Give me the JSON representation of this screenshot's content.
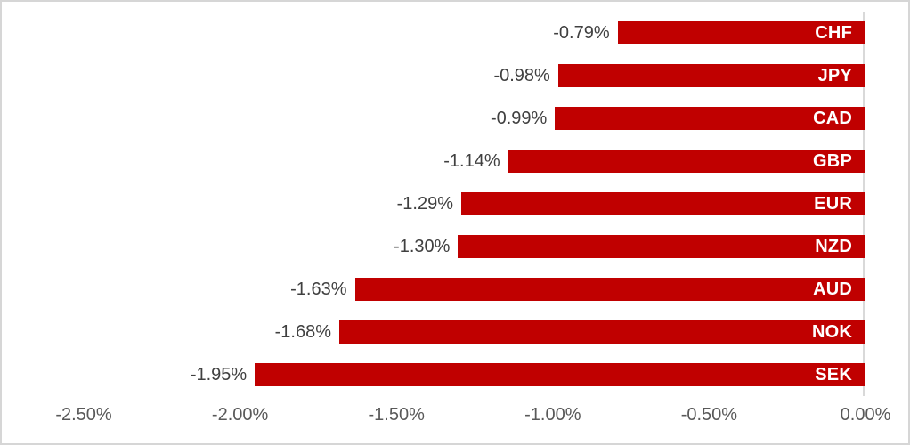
{
  "chart_data": {
    "type": "bar",
    "orientation": "horizontal",
    "title": "",
    "categories": [
      "CHF",
      "JPY",
      "CAD",
      "GBP",
      "EUR",
      "NZD",
      "AUD",
      "NOK",
      "SEK"
    ],
    "values": [
      -0.79,
      -0.98,
      -0.99,
      -1.14,
      -1.29,
      -1.3,
      -1.63,
      -1.68,
      -1.95
    ],
    "value_labels": [
      "-0.79%",
      "-0.98%",
      "-0.99%",
      "-1.14%",
      "-1.29%",
      "-1.30%",
      "-1.63%",
      "-1.68%",
      "-1.95%"
    ],
    "x_ticks": [
      "-2.50%",
      "-2.00%",
      "-1.50%",
      "-1.00%",
      "-0.50%",
      "0.00%"
    ],
    "x_tick_values": [
      -2.5,
      -2.0,
      -1.5,
      -1.0,
      -0.5,
      0.0
    ],
    "xlim": [
      -2.5,
      0.0
    ],
    "xlabel": "",
    "ylabel": "",
    "gridlines": false,
    "legend": false,
    "colors": {
      "bar": "#C00000",
      "bar_label": "#FFFFFF",
      "value_label": "#404040",
      "axis_tick_label": "#595959",
      "zero_axis_line": "#D9D9D9",
      "background": "#FFFFFF",
      "frame_border": "#D6D6D6"
    }
  }
}
